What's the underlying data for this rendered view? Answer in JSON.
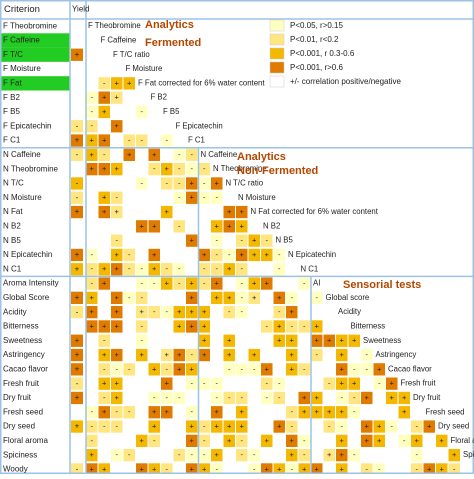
{
  "chart_data": {
    "type": "heatmap",
    "header_criterion": "Criterion",
    "header_yield": "Yield",
    "rows": [
      "F Theobromine",
      "F Caffeine",
      "F T/C",
      "F Moisture",
      "F Fat",
      "F B2",
      "F B5",
      "F Epicatechin",
      "F C1",
      "N Caffeine",
      "N Theobromine",
      "N T/C",
      "N Moisture",
      "N Fat",
      "N B2",
      "N B5",
      "N Epicatechin",
      "N C1",
      "Aroma Intensity",
      "Global Score",
      "Acidity",
      "Bitterness",
      "Sweetness",
      "Astringency",
      "Cacao flavor",
      "Fresh fruit",
      "Dry fruit",
      "Fresh seed",
      "Dry seed",
      "Floral aroma",
      "Spiciness",
      "Woody"
    ],
    "highlighted_rows": [
      "F Caffeine",
      "F T/C",
      "F Fat"
    ],
    "highlight_color": "#22cc22",
    "diagonal_labels": [
      "F Theobromine",
      "F Caffeine",
      "F T/C ratio",
      "F Moisture",
      "F Fat corrected for 6% water content",
      "F B2",
      "F B5",
      "F Epicatechin",
      "F C1",
      "N Caffeine",
      "N Theobromine",
      "N T/C ratio",
      "N Moisture",
      "N Fat corrected for 6% water content",
      "N B2",
      "N B5",
      "N Epicatechin",
      "N C1",
      "AI",
      "Global score",
      "Acidity",
      "Bitterness",
      "Sweetness",
      "Astringency",
      "Cacao flavor",
      "Fresh fruit",
      "Dry fruit",
      "Fresh seed",
      "Dry seed",
      "Floral aroma",
      "Spiciness"
    ],
    "group_titles": [
      {
        "line1": "Analytics",
        "line2": "Fermented"
      },
      {
        "line1": "Analytics",
        "line2": "Non-Fermented"
      },
      {
        "line1": "Sensorial tests",
        "line2": ""
      }
    ],
    "legend": [
      {
        "label": "P<0.05, r>0.15",
        "color": "#ffffc0"
      },
      {
        "label": "P<0.01, r<0.2",
        "color": "#ffe680"
      },
      {
        "label": "P<0.001, r 0.3-0.6",
        "color": "#f5b800"
      },
      {
        "label": "P<0.001, r>0.6",
        "color": "#e07b00"
      },
      {
        "label": "+/- correlation positive/negative",
        "color": "#ffffff"
      }
    ],
    "title_color": "#b34700",
    "grid_color": "#9cc3e6"
  }
}
